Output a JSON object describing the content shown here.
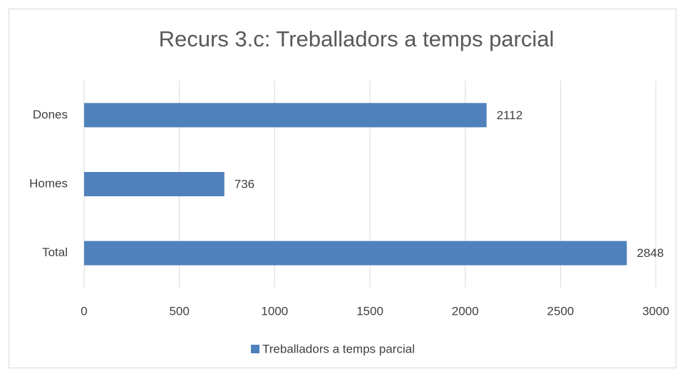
{
  "chart_data": {
    "type": "bar",
    "orientation": "horizontal",
    "title": "Recurs 3.c: Treballadors a temps parcial",
    "categories": [
      "Dones",
      "Homes",
      "Total"
    ],
    "series": [
      {
        "name": "Treballadors a temps parcial",
        "color": "#4f81bd",
        "values": [
          2112,
          736,
          2848
        ]
      }
    ],
    "xlim": [
      0,
      3000
    ],
    "xticks": [
      0,
      500,
      1000,
      1500,
      2000,
      2500,
      3000
    ],
    "grid": true,
    "legend": "bottom"
  }
}
